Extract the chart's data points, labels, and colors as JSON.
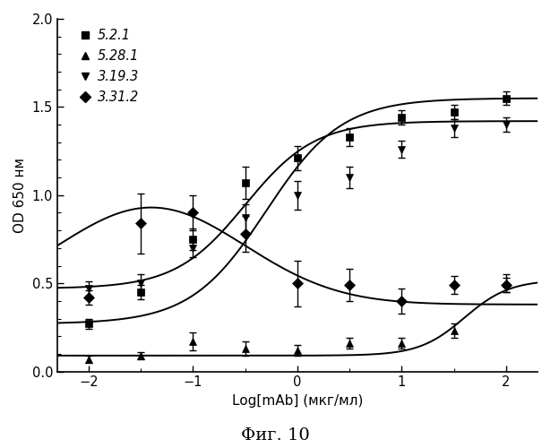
{
  "xlabel": "Log[mAb] (мкг/мл)",
  "ylabel": "OD 650 нм",
  "caption": "Фиг. 10",
  "xlim": [
    -2.3,
    2.3
  ],
  "ylim": [
    0.0,
    2.0
  ],
  "xticks": [
    -2,
    -1,
    0,
    1,
    2
  ],
  "yticks": [
    0.0,
    0.5,
    1.0,
    1.5,
    2.0
  ],
  "series": [
    {
      "label": "5.2.1",
      "marker": "s",
      "x": [
        -2,
        -1.5,
        -1,
        -0.5,
        0,
        0.5,
        1,
        1.5,
        2
      ],
      "y": [
        0.27,
        0.45,
        0.75,
        1.07,
        1.21,
        1.33,
        1.44,
        1.47,
        1.55
      ],
      "yerr": [
        0.03,
        0.04,
        0.06,
        0.09,
        0.07,
        0.05,
        0.04,
        0.04,
        0.04
      ],
      "type": "sigmoid_up",
      "p0": [
        0.27,
        1.55,
        -0.3,
        1.2
      ]
    },
    {
      "label": "5.28.1",
      "marker": "^",
      "x": [
        -2,
        -1.5,
        -1,
        -0.5,
        0,
        0.5,
        1,
        1.5,
        2
      ],
      "y": [
        0.07,
        0.09,
        0.17,
        0.13,
        0.12,
        0.16,
        0.16,
        0.23,
        0.5
      ],
      "yerr": [
        0.02,
        0.02,
        0.05,
        0.04,
        0.03,
        0.03,
        0.03,
        0.04,
        0.05
      ],
      "type": "sigmoid_up",
      "p0": [
        0.09,
        0.52,
        1.6,
        2.0
      ]
    },
    {
      "label": "3.19.3",
      "marker": "v",
      "x": [
        -2,
        -1.5,
        -1,
        -0.5,
        0,
        0.5,
        1,
        1.5,
        2
      ],
      "y": [
        0.47,
        0.5,
        0.7,
        0.87,
        1.0,
        1.1,
        1.26,
        1.38,
        1.4
      ],
      "yerr": [
        0.04,
        0.05,
        0.05,
        0.08,
        0.08,
        0.06,
        0.05,
        0.05,
        0.04
      ],
      "type": "sigmoid_up",
      "p0": [
        0.47,
        1.42,
        -0.5,
        1.3
      ]
    },
    {
      "label": "3.31.2",
      "marker": "D",
      "x": [
        -2,
        -1.5,
        -1,
        -0.5,
        0,
        0.5,
        1,
        1.5,
        2
      ],
      "y": [
        0.42,
        0.84,
        0.9,
        0.78,
        0.5,
        0.49,
        0.4,
        0.49,
        0.49
      ],
      "yerr": [
        0.04,
        0.17,
        0.1,
        0.1,
        0.13,
        0.09,
        0.07,
        0.05,
        0.04
      ],
      "type": "bell",
      "p0": [
        0.38,
        0.55,
        -1.4,
        0.9
      ]
    }
  ]
}
